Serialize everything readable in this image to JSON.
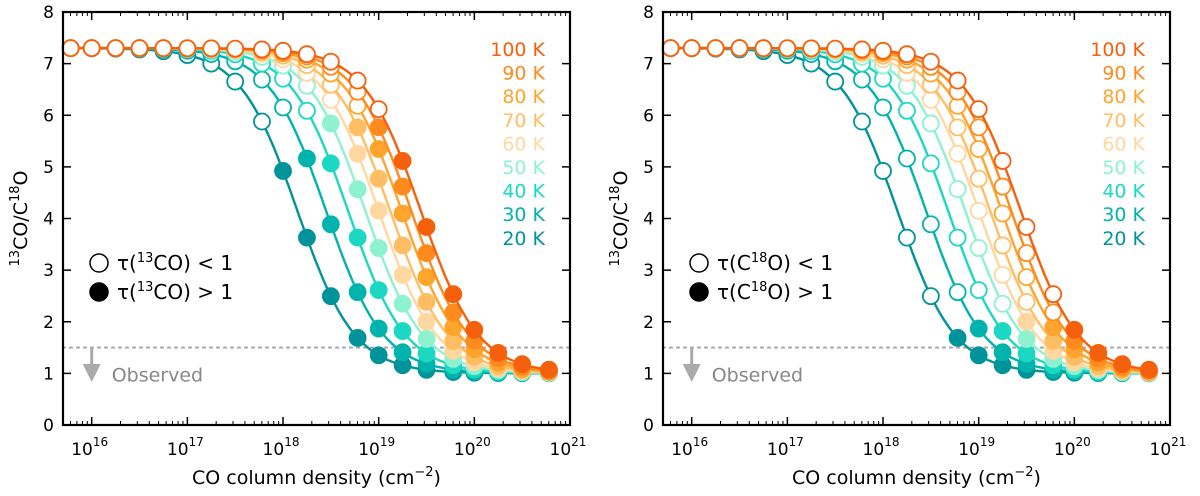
{
  "colors": {
    "20": "#00939a",
    "30": "#00b3ac",
    "40": "#1cd8c2",
    "50": "#8ef2d0",
    "60": "#ffd7a0",
    "70": "#ffbe64",
    "80": "#ffa52e",
    "90": "#ff8a1e",
    "100": "#f5600c",
    "observed": "#aaaaaa",
    "observed_text": "#888888"
  },
  "chart_data": [
    {
      "type": "line",
      "name": "panel-13co",
      "xscale": "log",
      "xlim_log10": [
        15.7,
        21
      ],
      "ylim": [
        0,
        8
      ],
      "xlabel_main": "CO column density (cm",
      "xlabel_sup": "−2",
      "xlabel_tail": ")",
      "ylabel": {
        "sup1": "13",
        "mid": "CO/C",
        "sup2": "18",
        "tail": "O"
      },
      "yticks": [
        "0",
        "1",
        "2",
        "3",
        "4",
        "5",
        "6",
        "7",
        "8"
      ],
      "xticks": [
        {
          "base": "10",
          "exp": "16",
          "log10": 16
        },
        {
          "base": "10",
          "exp": "17",
          "log10": 17
        },
        {
          "base": "10",
          "exp": "18",
          "log10": 18
        },
        {
          "base": "10",
          "exp": "19",
          "log10": 19
        },
        {
          "base": "10",
          "exp": "20",
          "log10": 20
        },
        {
          "base": "10",
          "exp": "21",
          "log10": 21
        }
      ],
      "observed_line_y": 1.5,
      "observed_label": "Observed",
      "legend": [
        {
          "filled": false,
          "pre": "τ(",
          "sup": "13",
          "post": "CO) < 1"
        },
        {
          "filled": true,
          "pre": "τ(",
          "sup": "13",
          "post": "CO) > 1"
        }
      ],
      "temperature_labels": [
        "100 K",
        "90 K",
        "80 K",
        "70 K",
        "60 K",
        "50 K",
        "40 K",
        "30 K",
        "20 K"
      ],
      "x_log10": [
        15.78,
        16.0,
        16.25,
        16.5,
        16.75,
        17.0,
        17.25,
        17.5,
        17.78,
        18.0,
        18.25,
        18.5,
        18.78,
        19.0,
        19.25,
        19.5,
        19.78,
        20.0,
        20.25,
        20.5,
        20.78
      ],
      "series": [
        {
          "name": "20 K",
          "color_key": "20",
          "midpoint_log10": 18.15,
          "tau_threshold_log10": 18.0
        },
        {
          "name": "30 K",
          "color_key": "30",
          "midpoint_log10": 18.45,
          "tau_threshold_log10": 18.25
        },
        {
          "name": "40 K",
          "color_key": "40",
          "midpoint_log10": 18.68,
          "tau_threshold_log10": 18.5
        },
        {
          "name": "50 K",
          "color_key": "50",
          "midpoint_log10": 18.86,
          "tau_threshold_log10": 18.5
        },
        {
          "name": "60 K",
          "color_key": "60",
          "midpoint_log10": 19.0,
          "tau_threshold_log10": 18.78
        },
        {
          "name": "70 K",
          "color_key": "70",
          "midpoint_log10": 19.12,
          "tau_threshold_log10": 18.78
        },
        {
          "name": "80 K",
          "color_key": "80",
          "midpoint_log10": 19.24,
          "tau_threshold_log10": 19.0
        },
        {
          "name": "90 K",
          "color_key": "90",
          "midpoint_log10": 19.34,
          "tau_threshold_log10": 19.0
        },
        {
          "name": "100 K",
          "color_key": "100",
          "midpoint_log10": 19.44,
          "tau_threshold_log10": 19.25
        }
      ],
      "curve_model": {
        "high": 7.3,
        "low": 1.0,
        "width_log10": 0.3
      }
    },
    {
      "type": "line",
      "name": "panel-c18o",
      "xscale": "log",
      "xlim_log10": [
        15.7,
        21
      ],
      "ylim": [
        0,
        8
      ],
      "xlabel_main": "CO column density (cm",
      "xlabel_sup": "−2",
      "xlabel_tail": ")",
      "ylabel": {
        "sup1": "13",
        "mid": "CO/C",
        "sup2": "18",
        "tail": "O"
      },
      "yticks": [
        "0",
        "1",
        "2",
        "3",
        "4",
        "5",
        "6",
        "7",
        "8"
      ],
      "xticks": [
        {
          "base": "10",
          "exp": "16",
          "log10": 16
        },
        {
          "base": "10",
          "exp": "17",
          "log10": 17
        },
        {
          "base": "10",
          "exp": "18",
          "log10": 18
        },
        {
          "base": "10",
          "exp": "19",
          "log10": 19
        },
        {
          "base": "10",
          "exp": "20",
          "log10": 20
        },
        {
          "base": "10",
          "exp": "21",
          "log10": 21
        }
      ],
      "observed_line_y": 1.5,
      "observed_label": "Observed",
      "legend": [
        {
          "filled": false,
          "pre": "τ(C",
          "sup": "18",
          "post": "O) < 1"
        },
        {
          "filled": true,
          "pre": "τ(C",
          "sup": "18",
          "post": "O) > 1"
        }
      ],
      "temperature_labels": [
        "100 K",
        "90 K",
        "80 K",
        "70 K",
        "60 K",
        "50 K",
        "40 K",
        "30 K",
        "20 K"
      ],
      "x_log10": [
        15.78,
        16.0,
        16.25,
        16.5,
        16.75,
        17.0,
        17.25,
        17.5,
        17.78,
        18.0,
        18.25,
        18.5,
        18.78,
        19.0,
        19.25,
        19.5,
        19.78,
        20.0,
        20.25,
        20.5,
        20.78
      ],
      "series": [
        {
          "name": "20 K",
          "color_key": "20",
          "midpoint_log10": 18.15,
          "tau_threshold_log10": 18.78
        },
        {
          "name": "30 K",
          "color_key": "30",
          "midpoint_log10": 18.45,
          "tau_threshold_log10": 19.0
        },
        {
          "name": "40 K",
          "color_key": "40",
          "midpoint_log10": 18.68,
          "tau_threshold_log10": 19.25
        },
        {
          "name": "50 K",
          "color_key": "50",
          "midpoint_log10": 18.86,
          "tau_threshold_log10": 19.5
        },
        {
          "name": "60 K",
          "color_key": "60",
          "midpoint_log10": 19.0,
          "tau_threshold_log10": 19.5
        },
        {
          "name": "70 K",
          "color_key": "70",
          "midpoint_log10": 19.12,
          "tau_threshold_log10": 19.78
        },
        {
          "name": "80 K",
          "color_key": "80",
          "midpoint_log10": 19.24,
          "tau_threshold_log10": 19.78
        },
        {
          "name": "90 K",
          "color_key": "90",
          "midpoint_log10": 19.34,
          "tau_threshold_log10": 20.0
        },
        {
          "name": "100 K",
          "color_key": "100",
          "midpoint_log10": 19.44,
          "tau_threshold_log10": 20.0
        }
      ],
      "curve_model": {
        "high": 7.3,
        "low": 1.0,
        "width_log10": 0.3
      }
    }
  ]
}
